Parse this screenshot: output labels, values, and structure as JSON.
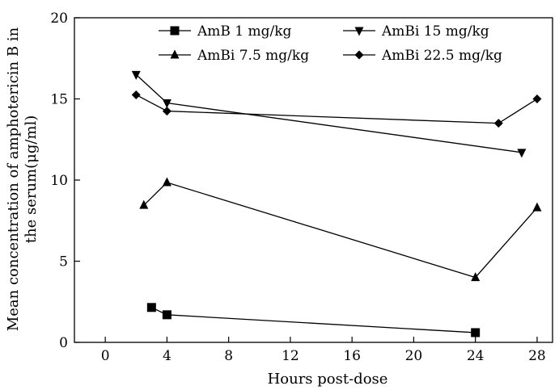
{
  "chart_data": {
    "type": "line",
    "title": "",
    "xlabel": "Hours post-dose",
    "ylabel_lines": [
      "Mean concentration of amphotericin B in",
      "the serum(μg/ml)"
    ],
    "xlim": [
      -2,
      29
    ],
    "ylim": [
      0,
      20
    ],
    "xticks": [
      0,
      4,
      8,
      12,
      16,
      20,
      24,
      28
    ],
    "yticks": [
      0,
      5,
      10,
      15,
      20
    ],
    "grid": false,
    "legend": "top",
    "series": [
      {
        "name": "AmB 1 mg/kg",
        "marker": "square",
        "x": [
          3,
          4,
          24
        ],
        "y": [
          2.15,
          1.7,
          0.6
        ]
      },
      {
        "name": "AmBi 7.5 mg/kg",
        "marker": "triangle-up",
        "x": [
          2.5,
          4,
          24,
          28
        ],
        "y": [
          8.45,
          9.85,
          4.0,
          8.3
        ]
      },
      {
        "name": "AmBi 15 mg/kg",
        "marker": "triangle-down",
        "x": [
          2,
          4,
          27,
          28
        ],
        "y": [
          16.5,
          14.75,
          11.7,
          null
        ]
      },
      {
        "name": "AmBi 22.5 mg/kg",
        "marker": "diamond",
        "x": [
          2,
          4,
          25.5,
          28
        ],
        "y": [
          15.25,
          14.25,
          13.5,
          15.0
        ]
      }
    ]
  }
}
